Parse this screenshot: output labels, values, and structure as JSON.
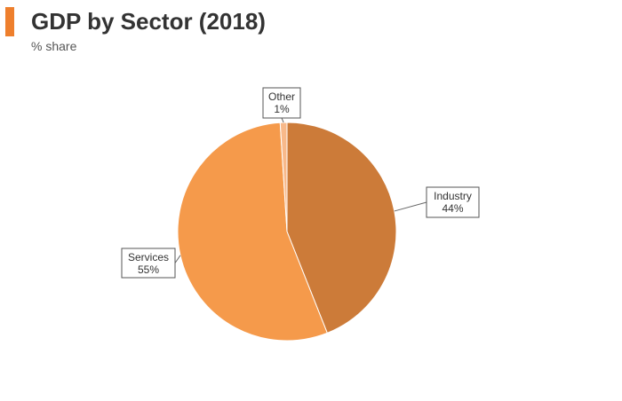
{
  "chart_data": {
    "type": "pie",
    "title": "GDP by Sector (2018)",
    "subtitle": "% share",
    "slices": [
      {
        "label": "Industry",
        "value": 44,
        "display": "44%",
        "color": "#cc7b39"
      },
      {
        "label": "Services",
        "value": 55,
        "display": "55%",
        "color": "#f59a4b"
      },
      {
        "label": "Other",
        "value": 1,
        "display": "1%",
        "color": "#f8b98a"
      }
    ],
    "legend": "none"
  },
  "colors": {
    "accent": "#ee7f2d"
  }
}
